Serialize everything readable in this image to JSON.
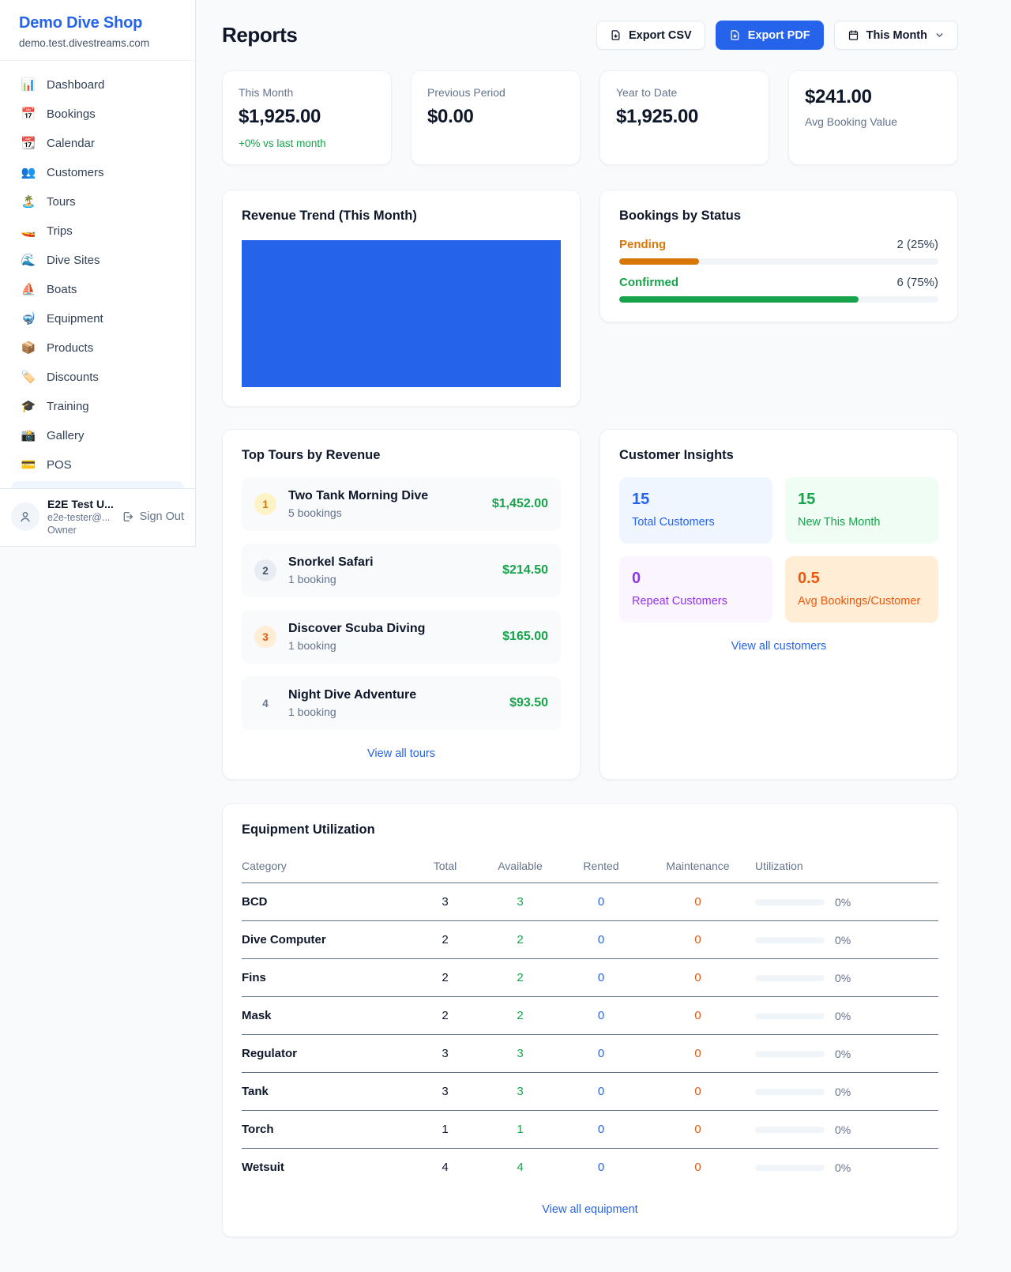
{
  "colors": {
    "accent_blue": "#2563eb",
    "green": "#16a34a",
    "orange": "#d97706",
    "deep_orange": "#ea580c",
    "purple": "#9333ea"
  },
  "sidebar": {
    "title": "Demo Dive Shop",
    "subdomain": "demo.test.divestreams.com",
    "items": [
      {
        "icon": "📊",
        "label": "Dashboard"
      },
      {
        "icon": "📅",
        "label": "Bookings"
      },
      {
        "icon": "📆",
        "label": "Calendar"
      },
      {
        "icon": "👥",
        "label": "Customers"
      },
      {
        "icon": "🏝️",
        "label": "Tours"
      },
      {
        "icon": "🚤",
        "label": "Trips"
      },
      {
        "icon": "🌊",
        "label": "Dive Sites"
      },
      {
        "icon": "⛵",
        "label": "Boats"
      },
      {
        "icon": "🤿",
        "label": "Equipment"
      },
      {
        "icon": "📦",
        "label": "Products"
      },
      {
        "icon": "🏷️",
        "label": "Discounts"
      },
      {
        "icon": "🎓",
        "label": "Training"
      },
      {
        "icon": "📸",
        "label": "Gallery"
      },
      {
        "icon": "💳",
        "label": "POS"
      }
    ],
    "user": {
      "name": "E2E Test U...",
      "email": "e2e-tester@...",
      "role": "Owner",
      "signout_label": "Sign Out"
    }
  },
  "header": {
    "title": "Reports",
    "export_csv_label": "Export CSV",
    "export_pdf_label": "Export PDF",
    "period_label": "This Month"
  },
  "stats": [
    {
      "label": "This Month",
      "value": "$1,925.00",
      "delta": "+0% vs last month"
    },
    {
      "label": "Previous Period",
      "value": "$0.00"
    },
    {
      "label": "Year to Date",
      "value": "$1,925.00"
    },
    {
      "label": "Avg Booking Value",
      "value": "$241.00"
    }
  ],
  "revenue_trend": {
    "title": "Revenue Trend (This Month)"
  },
  "bookings_by_status": {
    "title": "Bookings by Status",
    "rows": [
      {
        "label": "Pending",
        "count_text": "2 (25%)",
        "count": 2,
        "pct": 25
      },
      {
        "label": "Confirmed",
        "count_text": "6 (75%)",
        "count": 6,
        "pct": 75
      }
    ]
  },
  "top_tours": {
    "title": "Top Tours by Revenue",
    "rows": [
      {
        "rank": "1",
        "name": "Two Tank Morning Dive",
        "bookings": "5 bookings",
        "revenue": "$1,452.00"
      },
      {
        "rank": "2",
        "name": "Snorkel Safari",
        "bookings": "1 booking",
        "revenue": "$214.50"
      },
      {
        "rank": "3",
        "name": "Discover Scuba Diving",
        "bookings": "1 booking",
        "revenue": "$165.00"
      },
      {
        "rank": "4",
        "name": "Night Dive Adventure",
        "bookings": "1 booking",
        "revenue": "$93.50"
      }
    ],
    "link": "View all tours"
  },
  "customer_insights": {
    "title": "Customer Insights",
    "tiles": [
      {
        "value": "15",
        "label": "Total Customers"
      },
      {
        "value": "15",
        "label": "New This Month"
      },
      {
        "value": "0",
        "label": "Repeat Customers"
      },
      {
        "value": "0.5",
        "label": "Avg Bookings/Customer"
      }
    ],
    "link": "View all customers"
  },
  "equipment": {
    "title": "Equipment Utilization",
    "columns": [
      "Category",
      "Total",
      "Available",
      "Rented",
      "Maintenance",
      "Utilization"
    ],
    "rows": [
      {
        "category": "BCD",
        "total": "3",
        "available": "3",
        "rented": "0",
        "maintenance": "0",
        "utilization_pct": 0,
        "utilization_text": "0%"
      },
      {
        "category": "Dive Computer",
        "total": "2",
        "available": "2",
        "rented": "0",
        "maintenance": "0",
        "utilization_pct": 0,
        "utilization_text": "0%"
      },
      {
        "category": "Fins",
        "total": "2",
        "available": "2",
        "rented": "0",
        "maintenance": "0",
        "utilization_pct": 0,
        "utilization_text": "0%"
      },
      {
        "category": "Mask",
        "total": "2",
        "available": "2",
        "rented": "0",
        "maintenance": "0",
        "utilization_pct": 0,
        "utilization_text": "0%"
      },
      {
        "category": "Regulator",
        "total": "3",
        "available": "3",
        "rented": "0",
        "maintenance": "0",
        "utilization_pct": 0,
        "utilization_text": "0%"
      },
      {
        "category": "Tank",
        "total": "3",
        "available": "3",
        "rented": "0",
        "maintenance": "0",
        "utilization_pct": 0,
        "utilization_text": "0%"
      },
      {
        "category": "Torch",
        "total": "1",
        "available": "1",
        "rented": "0",
        "maintenance": "0",
        "utilization_pct": 0,
        "utilization_text": "0%"
      },
      {
        "category": "Wetsuit",
        "total": "4",
        "available": "4",
        "rented": "0",
        "maintenance": "0",
        "utilization_pct": 0,
        "utilization_text": "0%"
      }
    ],
    "link": "View all equipment"
  },
  "chart_data": [
    {
      "type": "bar",
      "title": "Revenue Trend (This Month)",
      "note": "single solid blue bar filling the whole plot area; no axes or labels visible",
      "categories": [
        "This Month"
      ],
      "values": [
        1925
      ]
    },
    {
      "type": "bar",
      "title": "Bookings by Status",
      "categories": [
        "Pending",
        "Confirmed"
      ],
      "values": [
        2,
        6
      ],
      "percent": [
        25,
        75
      ]
    }
  ]
}
